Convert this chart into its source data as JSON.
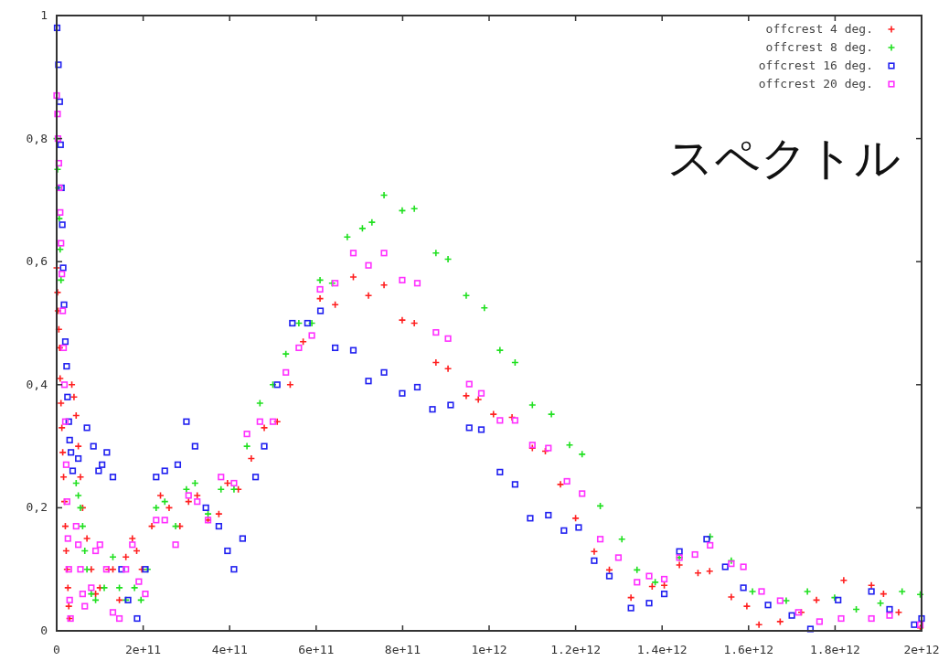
{
  "chart_data": {
    "type": "scatter",
    "xlim": [
      0,
      2000000000000.0
    ],
    "ylim": [
      0,
      1
    ],
    "xticks": [
      0,
      {
        "value": 200000000000.0,
        "label": "2e+11"
      },
      {
        "value": 400000000000.0,
        "label": "4e+11"
      },
      {
        "value": 600000000000.0,
        "label": "6e+11"
      },
      {
        "value": 800000000000.0,
        "label": "8e+11"
      },
      {
        "value": 1000000000000.0,
        "label": "1e+12"
      },
      {
        "value": 1200000000000.0,
        "label": "1.2e+12"
      },
      {
        "value": 1400000000000.0,
        "label": "1.4e+12"
      },
      {
        "value": 1600000000000.0,
        "label": "1.6e+12"
      },
      {
        "value": 1800000000000.0,
        "label": "1.8e+12"
      },
      {
        "value": 2000000000000.0,
        "label": "2e+12"
      }
    ],
    "yticks": [
      0,
      {
        "value": 0.2,
        "label": "0,2"
      },
      {
        "value": 0.4,
        "label": "0,4"
      },
      {
        "value": 0.6,
        "label": "0,6"
      },
      {
        "value": 0.8,
        "label": "0,8"
      },
      1
    ],
    "legend": "top right",
    "annotations": [
      "スペクトル"
    ],
    "series": [
      {
        "name": "offcrest 4 deg.",
        "color": "#ff2020",
        "marker": "cross",
        "x": [
          0,
          2000000000.0,
          3000000000.0,
          5000000000.0,
          7000000000.0,
          8000000000.0,
          10000000000.0,
          12000000000.0,
          14000000000.0,
          16000000000.0,
          18000000000.0,
          20000000000.0,
          22000000000.0,
          24000000000.0,
          26000000000.0,
          28000000000.0,
          30000000000.0,
          35000000000.0,
          40000000000.0,
          45000000000.0,
          50000000000.0,
          55000000000.0,
          60000000000.0,
          70000000000.0,
          80000000000.0,
          90000000000.0,
          100000000000.0,
          120000000000.0,
          130000000000.0,
          145000000000.0,
          160000000000.0,
          175000000000.0,
          185000000000.0,
          197000000000.0,
          220000000000.0,
          240000000000.0,
          260000000000.0,
          285000000000.0,
          305000000000.0,
          325000000000.0,
          350000000000.0,
          375000000000.0,
          395000000000.0,
          420000000000.0,
          450000000000.0,
          480000000000.0,
          510000000000.0,
          540000000000.0,
          570000000000.0,
          609000000000.0,
          644000000000.0,
          686000000000.0,
          721000000000.0,
          757000000000.0,
          799000000000.0,
          827000000000.0,
          877000000000.0,
          905000000000.0,
          947000000000.0,
          975000000000.0,
          1010000000000.0,
          1053000000000.0,
          1100000000000.0,
          1130000000000.0,
          1165000000000.0,
          1200000000000.0,
          1243000000000.0,
          1278000000000.0,
          1328000000000.0,
          1377000000000.0,
          1405000000000.0,
          1440000000000.0,
          1483000000000.0,
          1510000000000.0,
          1560000000000.0,
          1596000000000.0,
          1624000000000.0,
          1673000000000.0,
          1722000000000.0,
          1757000000000.0,
          1820000000000.0,
          1884000000000.0,
          1912000000000.0,
          1947000000000.0,
          1997000000000.0
        ],
        "values": [
          0.59,
          0.55,
          0.52,
          0.49,
          0.46,
          0.41,
          0.37,
          0.33,
          0.29,
          0.25,
          0.21,
          0.17,
          0.13,
          0.1,
          0.07,
          0.04,
          0.02,
          0.4,
          0.38,
          0.35,
          0.3,
          0.25,
          0.2,
          0.15,
          0.1,
          0.06,
          0.07,
          0.1,
          0.1,
          0.05,
          0.12,
          0.15,
          0.13,
          0.1,
          0.17,
          0.22,
          0.2,
          0.17,
          0.21,
          0.22,
          0.18,
          0.19,
          0.24,
          0.23,
          0.28,
          0.33,
          0.34,
          0.4,
          0.47,
          0.54,
          0.53,
          0.575,
          0.545,
          0.562,
          0.505,
          0.5,
          0.436,
          0.426,
          0.382,
          0.376,
          0.352,
          0.347,
          0.297,
          0.292,
          0.238,
          0.183,
          0.129,
          0.099,
          0.054,
          0.072,
          0.074,
          0.107,
          0.094,
          0.097,
          0.055,
          0.04,
          0.01,
          0.015,
          0.03,
          0.05,
          0.082,
          0.074,
          0.06,
          0.03,
          0.005
        ]
      },
      {
        "name": "offcrest 8 deg.",
        "color": "#20e020",
        "marker": "cross",
        "x": [
          0,
          2000000000.0,
          4000000000.0,
          6000000000.0,
          8000000000.0,
          10000000000.0,
          45000000000.0,
          50000000000.0,
          55000000000.0,
          60000000000.0,
          65000000000.0,
          70000000000.0,
          80000000000.0,
          90000000000.0,
          110000000000.0,
          130000000000.0,
          145000000000.0,
          160000000000.0,
          180000000000.0,
          195000000000.0,
          210000000000.0,
          230000000000.0,
          250000000000.0,
          275000000000.0,
          300000000000.0,
          320000000000.0,
          350000000000.0,
          380000000000.0,
          410000000000.0,
          440000000000.0,
          470000000000.0,
          500000000000.0,
          530000000000.0,
          560000000000.0,
          590000000000.0,
          609000000000.0,
          637000000000.0,
          672000000000.0,
          707000000000.0,
          729000000000.0,
          757000000000.0,
          799000000000.0,
          827000000000.0,
          877000000000.0,
          905000000000.0,
          947000000000.0,
          989000000000.0,
          1025000000000.0,
          1060000000000.0,
          1100000000000.0,
          1144000000000.0,
          1186000000000.0,
          1215000000000.0,
          1257000000000.0,
          1307000000000.0,
          1342000000000.0,
          1384000000000.0,
          1440000000000.0,
          1511000000000.0,
          1560000000000.0,
          1609000000000.0,
          1687000000000.0,
          1736000000000.0,
          1799000000000.0,
          1849000000000.0,
          1905000000000.0,
          1955000000000.0,
          1997000000000.0
        ],
        "values": [
          0.8,
          0.75,
          0.72,
          0.67,
          0.62,
          0.57,
          0.24,
          0.22,
          0.2,
          0.17,
          0.13,
          0.1,
          0.06,
          0.05,
          0.07,
          0.12,
          0.07,
          0.05,
          0.07,
          0.05,
          0.1,
          0.2,
          0.21,
          0.17,
          0.23,
          0.24,
          0.19,
          0.23,
          0.23,
          0.3,
          0.37,
          0.4,
          0.45,
          0.5,
          0.5,
          0.57,
          0.565,
          0.64,
          0.654,
          0.664,
          0.708,
          0.683,
          0.686,
          0.614,
          0.604,
          0.545,
          0.525,
          0.456,
          0.436,
          0.367,
          0.352,
          0.302,
          0.287,
          0.203,
          0.149,
          0.099,
          0.079,
          0.119,
          0.153,
          0.114,
          0.064,
          0.049,
          0.064,
          0.054,
          0.035,
          0.045,
          0.064,
          0.059
        ]
      },
      {
        "name": "offcrest 16 deg.",
        "color": "#2020f0",
        "marker": "square",
        "x": [
          1000000000.0,
          4000000000.0,
          7000000000.0,
          9000000000.0,
          11000000000.0,
          13000000000.0,
          15000000000.0,
          17000000000.0,
          20000000000.0,
          23000000000.0,
          25000000000.0,
          28000000000.0,
          30000000000.0,
          33000000000.0,
          37000000000.0,
          50000000000.0,
          70000000000.0,
          85000000000.0,
          97000000000.0,
          105000000000.0,
          116000000000.0,
          130000000000.0,
          150000000000.0,
          165000000000.0,
          186000000000.0,
          205000000000.0,
          230000000000.0,
          250000000000.0,
          280000000000.0,
          300000000000.0,
          320000000000.0,
          345000000000.0,
          375000000000.0,
          395000000000.0,
          410000000000.0,
          430000000000.0,
          460000000000.0,
          480000000000.0,
          510000000000.0,
          545000000000.0,
          580000000000.0,
          610000000000.0,
          644000000000.0,
          686000000000.0,
          721000000000.0,
          757000000000.0,
          799000000000.0,
          834000000000.0,
          869000000000.0,
          911000000000.0,
          954000000000.0,
          982000000000.0,
          1025000000000.0,
          1060000000000.0,
          1095000000000.0,
          1137000000000.0,
          1173000000000.0,
          1207000000000.0,
          1243000000000.0,
          1278000000000.0,
          1328000000000.0,
          1370000000000.0,
          1405000000000.0,
          1440000000000.0,
          1503000000000.0,
          1546000000000.0,
          1588000000000.0,
          1645000000000.0,
          1700000000000.0,
          1743000000000.0,
          1807000000000.0,
          1884000000000.0,
          1926000000000.0,
          1983000000000.0,
          2000000000000.0
        ],
        "values": [
          0.98,
          0.92,
          0.86,
          0.79,
          0.72,
          0.66,
          0.59,
          0.53,
          0.47,
          0.43,
          0.38,
          0.34,
          0.31,
          0.29,
          0.26,
          0.28,
          0.33,
          0.3,
          0.26,
          0.27,
          0.29,
          0.25,
          0.1,
          0.05,
          0.02,
          0.1,
          0.25,
          0.26,
          0.27,
          0.34,
          0.3,
          0.2,
          0.17,
          0.13,
          0.1,
          0.15,
          0.25,
          0.3,
          0.4,
          0.5,
          0.5,
          0.52,
          0.46,
          0.456,
          0.406,
          0.42,
          0.386,
          0.396,
          0.36,
          0.367,
          0.33,
          0.327,
          0.258,
          0.238,
          0.183,
          0.188,
          0.163,
          0.168,
          0.114,
          0.089,
          0.037,
          0.045,
          0.06,
          0.129,
          0.149,
          0.104,
          0.07,
          0.042,
          0.025,
          0.003,
          0.05,
          0.064,
          0.035,
          0.01,
          0.02
        ]
      },
      {
        "name": "offcrest 20 deg.",
        "color": "#ff30ff",
        "marker": "square",
        "x": [
          0,
          2000000000.0,
          3000000000.0,
          5000000000.0,
          6000000000.0,
          8000000000.0,
          10000000000.0,
          12000000000.0,
          14000000000.0,
          16000000000.0,
          18000000000.0,
          20000000000.0,
          22000000000.0,
          24000000000.0,
          26000000000.0,
          28000000000.0,
          30000000000.0,
          32000000000.0,
          45000000000.0,
          50000000000.0,
          55000000000.0,
          60000000000.0,
          65000000000.0,
          80000000000.0,
          90000000000.0,
          100000000000.0,
          115000000000.0,
          130000000000.0,
          145000000000.0,
          160000000000.0,
          175000000000.0,
          190000000000.0,
          205000000000.0,
          230000000000.0,
          250000000000.0,
          275000000000.0,
          305000000000.0,
          325000000000.0,
          350000000000.0,
          380000000000.0,
          410000000000.0,
          440000000000.0,
          470000000000.0,
          500000000000.0,
          530000000000.0,
          560000000000.0,
          590000000000.0,
          609000000000.0,
          644000000000.0,
          686000000000.0,
          721000000000.0,
          757000000000.0,
          799000000000.0,
          834000000000.0,
          877000000000.0,
          905000000000.0,
          954000000000.0,
          982000000000.0,
          1025000000000.0,
          1060000000000.0,
          1100000000000.0,
          1137000000000.0,
          1180000000000.0,
          1215000000000.0,
          1257000000000.0,
          1299000000000.0,
          1342000000000.0,
          1370000000000.0,
          1405000000000.0,
          1440000000000.0,
          1476000000000.0,
          1511000000000.0,
          1560000000000.0,
          1588000000000.0,
          1630000000000.0,
          1673000000000.0,
          1715000000000.0,
          1764000000000.0,
          1814000000000.0,
          1884000000000.0,
          1926000000000.0,
          1997000000000.0
        ],
        "values": [
          0.87,
          0.84,
          0.8,
          0.76,
          0.72,
          0.68,
          0.63,
          0.58,
          0.52,
          0.46,
          0.4,
          0.34,
          0.27,
          0.21,
          0.15,
          0.1,
          0.05,
          0.02,
          0.17,
          0.14,
          0.1,
          0.06,
          0.04,
          0.07,
          0.13,
          0.14,
          0.1,
          0.03,
          0.02,
          0.1,
          0.14,
          0.08,
          0.06,
          0.18,
          0.18,
          0.14,
          0.22,
          0.21,
          0.18,
          0.25,
          0.24,
          0.32,
          0.34,
          0.34,
          0.42,
          0.46,
          0.48,
          0.555,
          0.565,
          0.614,
          0.594,
          0.614,
          0.57,
          0.565,
          0.485,
          0.475,
          0.401,
          0.386,
          0.342,
          0.342,
          0.302,
          0.297,
          0.243,
          0.223,
          0.149,
          0.119,
          0.079,
          0.089,
          0.084,
          0.119,
          0.124,
          0.139,
          0.109,
          0.104,
          0.064,
          0.049,
          0.03,
          0.015,
          0.02,
          0.02,
          0.025,
          0.01
        ]
      }
    ]
  }
}
